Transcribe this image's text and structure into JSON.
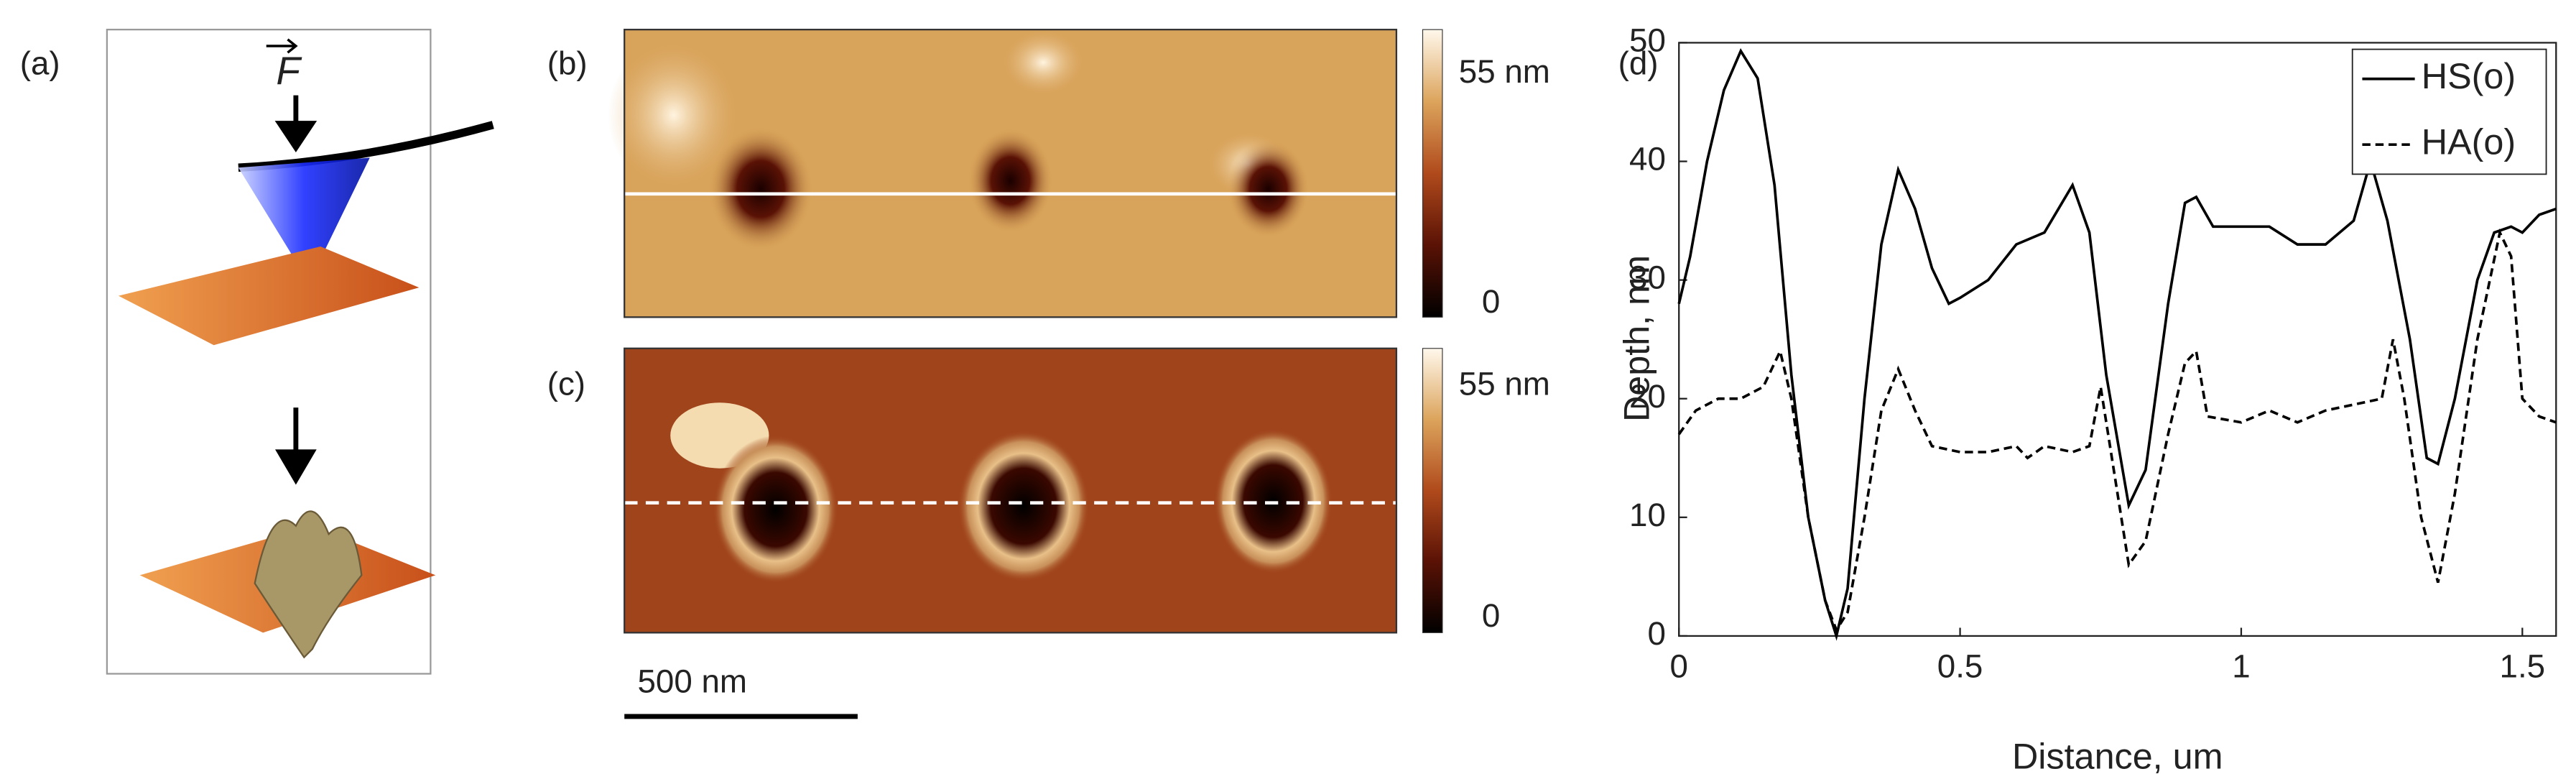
{
  "panels": {
    "a": {
      "label": "(a)",
      "force_label": "F"
    },
    "b": {
      "label": "(b)",
      "colorbar_max": "55 nm",
      "colorbar_min": "0"
    },
    "c": {
      "label": "(c)",
      "colorbar_max": "55 nm",
      "colorbar_min": "0"
    },
    "scale_bar": "500 nm"
  },
  "chart_data": {
    "type": "line",
    "panel_label": "(d)",
    "x_label": "Distance, um",
    "y_label": "Depth, nm",
    "xlim": [
      0,
      1.56
    ],
    "ylim": [
      0,
      50
    ],
    "xticks": [
      0,
      0.5,
      1,
      1.5
    ],
    "yticks": [
      0,
      10,
      20,
      30,
      40,
      50
    ],
    "legend": "upper right",
    "grid": false,
    "series": [
      {
        "name": "HS(o)",
        "color": "#000000",
        "style": "solid",
        "x": [
          0,
          0.02,
          0.05,
          0.08,
          0.11,
          0.14,
          0.17,
          0.2,
          0.23,
          0.26,
          0.28,
          0.3,
          0.33,
          0.36,
          0.39,
          0.42,
          0.45,
          0.48,
          0.5,
          0.55,
          0.6,
          0.65,
          0.7,
          0.73,
          0.76,
          0.8,
          0.83,
          0.87,
          0.9,
          0.92,
          0.95,
          1.0,
          1.05,
          1.1,
          1.15,
          1.2,
          1.23,
          1.26,
          1.3,
          1.33,
          1.35,
          1.38,
          1.42,
          1.45,
          1.48,
          1.5,
          1.53,
          1.56
        ],
        "values": [
          28,
          32,
          40,
          46,
          49.3,
          47,
          38,
          22,
          10,
          3,
          0,
          4,
          20,
          33,
          39.3,
          36,
          31,
          28,
          28.5,
          30,
          33,
          34,
          38,
          34,
          22,
          11,
          14,
          28,
          36.5,
          37,
          34.5,
          34.5,
          34.5,
          33,
          33,
          35,
          40,
          35,
          25,
          15,
          14.5,
          20,
          30,
          34,
          34.5,
          34,
          35.5,
          36
        ]
      },
      {
        "name": "HA(o)",
        "color": "#000000",
        "style": "dashed",
        "x": [
          0,
          0.03,
          0.07,
          0.11,
          0.15,
          0.18,
          0.2,
          0.23,
          0.26,
          0.28,
          0.3,
          0.33,
          0.36,
          0.39,
          0.42,
          0.45,
          0.5,
          0.55,
          0.6,
          0.62,
          0.65,
          0.7,
          0.73,
          0.75,
          0.77,
          0.8,
          0.83,
          0.87,
          0.9,
          0.92,
          0.94,
          1.0,
          1.05,
          1.1,
          1.15,
          1.2,
          1.25,
          1.27,
          1.29,
          1.32,
          1.35,
          1.38,
          1.42,
          1.46,
          1.48,
          1.5,
          1.53,
          1.56
        ],
        "values": [
          17,
          19,
          20,
          20,
          21,
          24,
          20,
          10,
          3,
          0.5,
          2,
          10,
          19,
          22.5,
          19,
          16,
          15.5,
          15.5,
          16,
          15,
          16,
          15.5,
          16,
          21,
          15,
          6,
          8,
          17,
          23,
          24,
          18.5,
          18,
          19,
          18,
          19,
          19.5,
          20,
          25,
          20,
          10,
          4.5,
          12,
          25,
          34,
          32,
          20,
          18.5,
          18
        ]
      }
    ]
  }
}
